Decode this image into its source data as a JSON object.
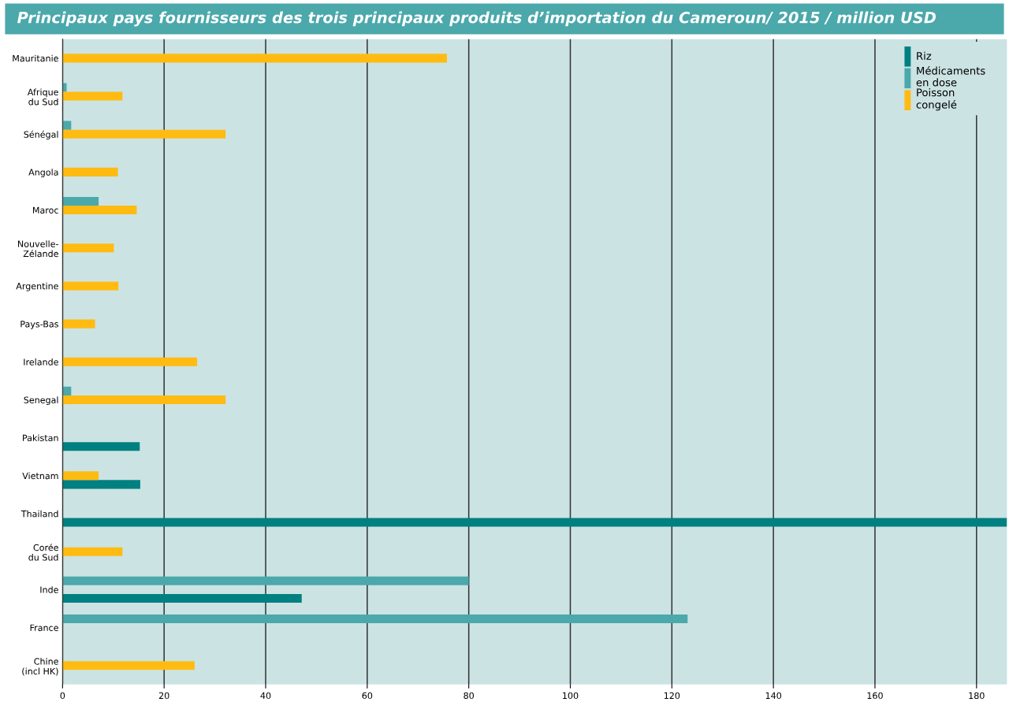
{
  "chart_data": {
    "type": "bar",
    "orientation": "horizontal",
    "title": "Principaux pays fournisseurs des trois principaux produits d’importation du Cameroun/ 2015 / million USD",
    "categories": [
      "Mauritanie",
      "Afrique\ndu Sud",
      "Sénégal",
      "Angola",
      "Maroc",
      "Nouvelle-\nZélande",
      "Argentine",
      "Pays-Bas",
      "Irelande",
      "Senegal",
      "Pakistan",
      "Vietnam",
      "Thailand",
      "Corée\ndu Sud",
      "Inde",
      "France",
      "Chine\n(incl HK)"
    ],
    "series": [
      {
        "name": "Riz",
        "color": "#008080",
        "values": [
          null,
          null,
          null,
          null,
          null,
          null,
          null,
          null,
          null,
          null,
          15.2,
          15.3,
          186,
          null,
          47.1,
          null,
          null
        ]
      },
      {
        "name": "Médicaments\nen dose",
        "color": "#4ba8ab",
        "values": [
          null,
          0.8,
          1.7,
          null,
          7.1,
          null,
          null,
          null,
          null,
          1.7,
          null,
          null,
          null,
          null,
          80,
          123.1,
          null
        ]
      },
      {
        "name": "Poisson\ncongelé",
        "color": "#ffbb11",
        "values": [
          75.7,
          11.8,
          32.1,
          10.9,
          14.6,
          10.1,
          11.0,
          6.4,
          26.5,
          32.1,
          null,
          7.1,
          null,
          11.8,
          null,
          null,
          26.0
        ]
      }
    ],
    "xlim": [
      0,
      186
    ],
    "xticks": [
      0,
      20,
      40,
      60,
      80,
      100,
      120,
      140,
      160,
      180
    ],
    "grid": "x",
    "legend": "top right"
  }
}
